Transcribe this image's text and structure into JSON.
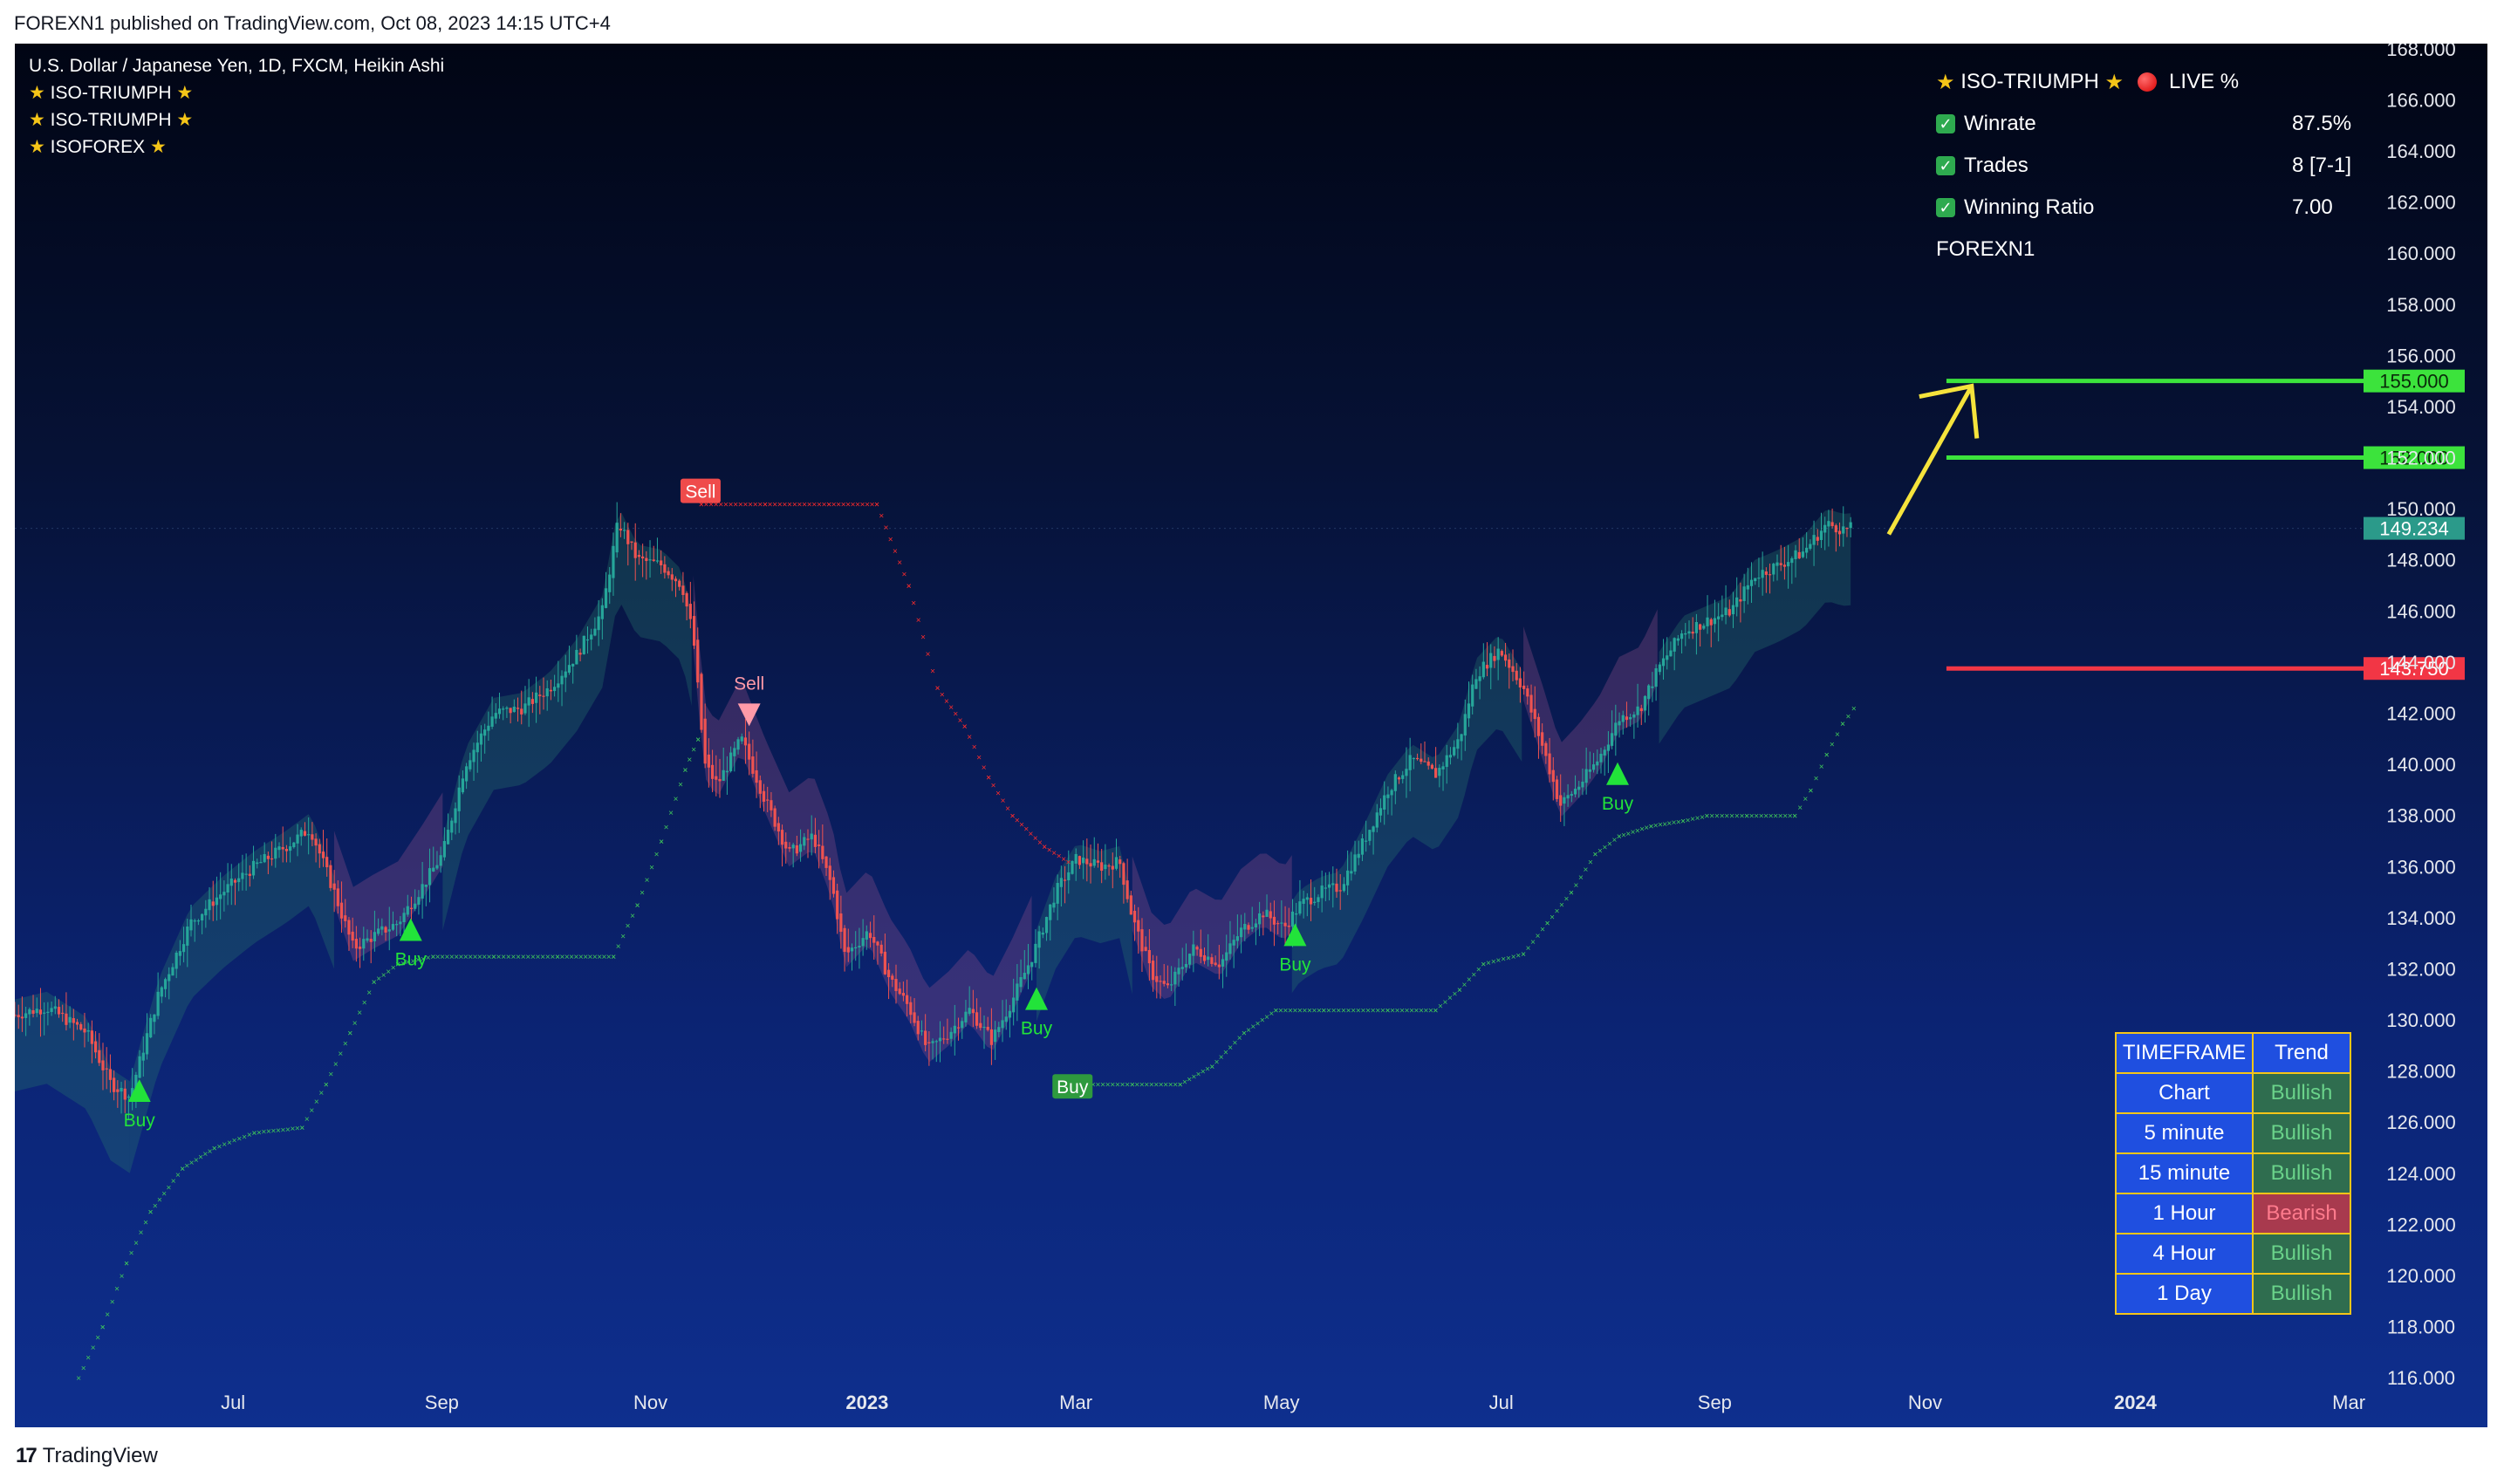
{
  "header": {
    "publish_text": "FOREXN1 published on TradingView.com, Oct 08, 2023 14:15 UTC+4"
  },
  "legend": {
    "symbol": "U.S. Dollar / Japanese Yen, 1D, FXCM, Heikin Ashi",
    "indicators": [
      "ISO-TRIUMPH",
      "ISO-TRIUMPH",
      "ISOFOREX"
    ]
  },
  "stats_panel": {
    "title": "ISO-TRIUMPH",
    "live_label": "LIVE %",
    "rows": [
      {
        "label": "Winrate",
        "value": "87.5%"
      },
      {
        "label": "Trades",
        "value": "8 [7-1]"
      },
      {
        "label": "Winning Ratio",
        "value": "7.00"
      }
    ],
    "author": "FOREXN1"
  },
  "trend_table": {
    "headers": [
      "TIMEFRAME",
      "Trend"
    ],
    "rows": [
      {
        "timeframe": "Chart",
        "trend": "Bullish"
      },
      {
        "timeframe": "5 minute",
        "trend": "Bullish"
      },
      {
        "timeframe": "15 minute",
        "trend": "Bullish"
      },
      {
        "timeframe": "1 Hour",
        "trend": "Bearish"
      },
      {
        "timeframe": "4 Hour",
        "trend": "Bullish"
      },
      {
        "timeframe": "1 Day",
        "trend": "Bullish"
      }
    ]
  },
  "colors": {
    "bull": "#26a69a",
    "bear": "#ef5350",
    "buy": "#22e33a",
    "sell": "#f23645",
    "target_line": "#3ce33c",
    "stop_line": "#f23645",
    "arrow": "#f5e33c",
    "current_price_bg": "#2b9a8a"
  },
  "chart_data": {
    "type": "candlestick",
    "style": "Heikin Ashi",
    "symbol": "USDJPY",
    "timeframe": "1D",
    "x_ticks": [
      "Jul",
      "Sep",
      "Nov",
      "2023",
      "Mar",
      "May",
      "Jul",
      "Sep",
      "Nov",
      "2024",
      "Mar"
    ],
    "y_ticks": [
      "116.000",
      "118.000",
      "120.000",
      "122.000",
      "124.000",
      "126.000",
      "128.000",
      "130.000",
      "132.000",
      "134.000",
      "136.000",
      "138.000",
      "140.000",
      "142.000",
      "144.000",
      "146.000",
      "148.000",
      "150.000",
      "152.000",
      "154.000",
      "156.000",
      "158.000",
      "160.000",
      "162.000",
      "164.000",
      "166.000",
      "168.000"
    ],
    "ylim": [
      115.8,
      168.2
    ],
    "price_path": [
      [
        0,
        130.2
      ],
      [
        20,
        130.5
      ],
      [
        45,
        129.5
      ],
      [
        60,
        127.5
      ],
      [
        72,
        127.0
      ],
      [
        90,
        131.0
      ],
      [
        110,
        133.8
      ],
      [
        130,
        135.0
      ],
      [
        150,
        136.0
      ],
      [
        170,
        136.8
      ],
      [
        185,
        137.5
      ],
      [
        200,
        135.0
      ],
      [
        212,
        132.8
      ],
      [
        225,
        133.3
      ],
      [
        240,
        133.8
      ],
      [
        255,
        135.2
      ],
      [
        268,
        136.5
      ],
      [
        282,
        140.0
      ],
      [
        300,
        142.0
      ],
      [
        318,
        142.2
      ],
      [
        335,
        143.0
      ],
      [
        352,
        144.3
      ],
      [
        368,
        146.0
      ],
      [
        378,
        149.5
      ],
      [
        390,
        148.0
      ],
      [
        405,
        147.8
      ],
      [
        418,
        147.0
      ],
      [
        425,
        145.0
      ],
      [
        432,
        140.0
      ],
      [
        440,
        139.2
      ],
      [
        455,
        141.0
      ],
      [
        470,
        138.6
      ],
      [
        485,
        136.5
      ],
      [
        500,
        137.2
      ],
      [
        512,
        135.2
      ],
      [
        520,
        132.5
      ],
      [
        535,
        133.5
      ],
      [
        548,
        131.6
      ],
      [
        560,
        130.5
      ],
      [
        572,
        128.8
      ],
      [
        585,
        129.5
      ],
      [
        598,
        130.4
      ],
      [
        612,
        129.2
      ],
      [
        625,
        130.8
      ],
      [
        638,
        132.6
      ],
      [
        652,
        135.0
      ],
      [
        665,
        136.3
      ],
      [
        680,
        136.0
      ],
      [
        692,
        136.2
      ],
      [
        700,
        134.0
      ],
      [
        712,
        131.8
      ],
      [
        722,
        131.2
      ],
      [
        738,
        132.8
      ],
      [
        755,
        132.2
      ],
      [
        768,
        133.5
      ],
      [
        782,
        134.2
      ],
      [
        795,
        133.6
      ],
      [
        805,
        134.5
      ],
      [
        818,
        135.0
      ],
      [
        830,
        135.2
      ],
      [
        845,
        137.0
      ],
      [
        860,
        139.0
      ],
      [
        875,
        140.2
      ],
      [
        890,
        139.6
      ],
      [
        905,
        141.0
      ],
      [
        915,
        143.5
      ],
      [
        930,
        144.5
      ],
      [
        945,
        143.0
      ],
      [
        958,
        140.5
      ],
      [
        968,
        138.4
      ],
      [
        980,
        139.2
      ],
      [
        992,
        140.2
      ],
      [
        1005,
        141.8
      ],
      [
        1018,
        142.2
      ],
      [
        1030,
        143.8
      ],
      [
        1045,
        145.2
      ],
      [
        1060,
        145.6
      ],
      [
        1075,
        146.0
      ],
      [
        1090,
        147.4
      ],
      [
        1105,
        147.8
      ],
      [
        1120,
        148.3
      ],
      [
        1135,
        149.4
      ],
      [
        1145,
        149.2
      ],
      [
        1152,
        149.234
      ]
    ],
    "current_price": "149.234",
    "levels": [
      {
        "label": "155.000",
        "price": 155.0,
        "kind": "target"
      },
      {
        "label": "152.000",
        "price": 152.0,
        "kind": "target"
      },
      {
        "label": "143.750",
        "price": 143.75,
        "kind": "stop"
      }
    ],
    "signals": [
      {
        "label": "Buy",
        "kind": "buy",
        "at": 78,
        "price": 127.2
      },
      {
        "label": "Buy",
        "kind": "buy",
        "at": 248,
        "price": 133.5
      },
      {
        "label": "Sell",
        "kind": "sell",
        "at": 460,
        "price": 141.9
      },
      {
        "label": "Buy",
        "kind": "buy",
        "at": 640,
        "price": 130.8
      },
      {
        "label": "Buy",
        "kind": "buy",
        "at": 802,
        "price": 133.3
      },
      {
        "label": "Buy",
        "kind": "buy",
        "at": 1004,
        "price": 139.6
      }
    ],
    "badges": [
      {
        "label": "Sell",
        "kind": "sell",
        "at": 429,
        "price": 150.7
      },
      {
        "label": "Buy",
        "kind": "buy",
        "at": 662,
        "price": 127.4
      }
    ],
    "stop_trail": [
      [
        40,
        116.0
      ],
      [
        55,
        118.0
      ],
      [
        70,
        120.5
      ],
      [
        85,
        122.5
      ],
      [
        105,
        124.2
      ],
      [
        125,
        125.0
      ],
      [
        150,
        125.6
      ],
      [
        180,
        125.8
      ],
      [
        195,
        127.5
      ],
      [
        210,
        129.5
      ],
      [
        225,
        131.5
      ],
      [
        240,
        132.2
      ],
      [
        262,
        132.5
      ],
      [
        300,
        132.5
      ],
      [
        340,
        132.5
      ],
      [
        375,
        132.5
      ],
      [
        390,
        134.5
      ],
      [
        405,
        137.0
      ],
      [
        420,
        139.8
      ],
      [
        428,
        141.0
      ],
      [
        430,
        150.2
      ],
      [
        470,
        150.2
      ],
      [
        510,
        150.2
      ],
      [
        540,
        150.2
      ],
      [
        560,
        147.0
      ],
      [
        578,
        143.0
      ],
      [
        595,
        141.5
      ],
      [
        610,
        139.5
      ],
      [
        625,
        138.0
      ],
      [
        645,
        136.8
      ],
      [
        660,
        136.2
      ],
      [
        660,
        127.5
      ],
      [
        700,
        127.5
      ],
      [
        730,
        127.5
      ],
      [
        750,
        128.2
      ],
      [
        770,
        129.5
      ],
      [
        790,
        130.4
      ],
      [
        820,
        130.4
      ],
      [
        860,
        130.4
      ],
      [
        890,
        130.4
      ],
      [
        905,
        131.2
      ],
      [
        920,
        132.2
      ],
      [
        945,
        132.6
      ],
      [
        960,
        133.8
      ],
      [
        975,
        135.0
      ],
      [
        990,
        136.5
      ],
      [
        1005,
        137.2
      ],
      [
        1025,
        137.6
      ],
      [
        1045,
        137.8
      ],
      [
        1060,
        138.0
      ],
      [
        1085,
        138.0
      ],
      [
        1115,
        138.0
      ],
      [
        1125,
        139.0
      ],
      [
        1135,
        140.4
      ],
      [
        1145,
        141.6
      ],
      [
        1152,
        142.2
      ]
    ]
  }
}
